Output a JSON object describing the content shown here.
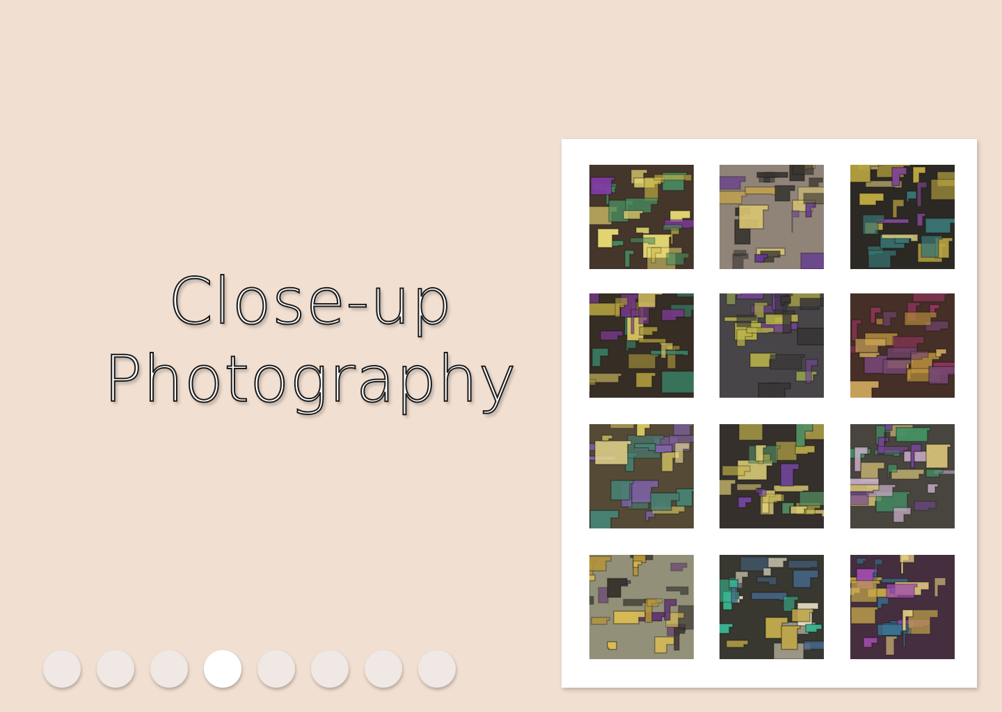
{
  "title": {
    "line1": "Close-up",
    "line2": "Photography"
  },
  "pagination": {
    "count": 8,
    "active_index": 3
  },
  "gallery": {
    "photos": [
      {
        "name": "photo-bismuth-1",
        "bg": "#3a2a1e",
        "accent": [
          "#c9b43a",
          "#7d2fa8",
          "#3f8a5a",
          "#e2d46a"
        ]
      },
      {
        "name": "photo-bismuth-2",
        "bg": "#8a7c70",
        "accent": [
          "#c8a23a",
          "#5b2f8a",
          "#2d2a25",
          "#d9c46a"
        ]
      },
      {
        "name": "photo-bismuth-3",
        "bg": "#1f1c18",
        "accent": [
          "#b8a235",
          "#2d6d6a",
          "#7a3b8a",
          "#e0cf7a"
        ]
      },
      {
        "name": "photo-bismuth-4",
        "bg": "#2a2018",
        "accent": [
          "#a89432",
          "#6a2c7a",
          "#2f7f62",
          "#d7c25a"
        ]
      },
      {
        "name": "photo-bismuth-5",
        "bg": "#3c3a3d",
        "accent": [
          "#b8b240",
          "#6a3b8a",
          "#8a9a48",
          "#2c2a2a"
        ]
      },
      {
        "name": "photo-bismuth-6",
        "bg": "#3a2219",
        "accent": [
          "#b98b34",
          "#8a2a52",
          "#6c3b6a",
          "#d2a855"
        ]
      },
      {
        "name": "photo-bismuth-7",
        "bg": "#4a3f2a",
        "accent": [
          "#d2c25a",
          "#7a5aa8",
          "#3d7a6a",
          "#efe08a"
        ]
      },
      {
        "name": "photo-bismuth-8",
        "bg": "#2a2420",
        "accent": [
          "#c0b040",
          "#6b3a9a",
          "#4a8a5a",
          "#e0cf70"
        ]
      },
      {
        "name": "photo-bismuth-9",
        "bg": "#3d3a33",
        "accent": [
          "#c6a9c5",
          "#6a3a8a",
          "#3a8a5a",
          "#d5c070"
        ]
      },
      {
        "name": "photo-bismuth-10",
        "bg": "#8c8a70",
        "accent": [
          "#b38f2a",
          "#5a2d6a",
          "#2e2a22",
          "#d7b84a"
        ]
      },
      {
        "name": "photo-bismuth-11",
        "bg": "#2c2b24",
        "accent": [
          "#2fb08a",
          "#b8a040",
          "#3a5a7a",
          "#e7e0c2"
        ]
      },
      {
        "name": "photo-bismuth-12",
        "bg": "#3a2233",
        "accent": [
          "#9a3fa6",
          "#c0a040",
          "#2f6a8a",
          "#e1c77a"
        ]
      }
    ]
  }
}
